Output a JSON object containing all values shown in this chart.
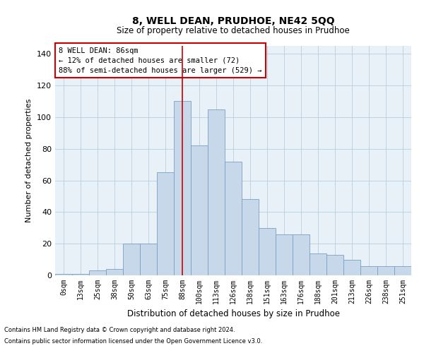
{
  "title1": "8, WELL DEAN, PRUDHOE, NE42 5QQ",
  "title2": "Size of property relative to detached houses in Prudhoe",
  "xlabel": "Distribution of detached houses by size in Prudhoe",
  "ylabel": "Number of detached properties",
  "footnote1": "Contains HM Land Registry data © Crown copyright and database right 2024.",
  "footnote2": "Contains public sector information licensed under the Open Government Licence v3.0.",
  "annotation_line1": "8 WELL DEAN: 86sqm",
  "annotation_line2": "← 12% of detached houses are smaller (72)",
  "annotation_line3": "88% of semi-detached houses are larger (529) →",
  "bar_color": "#c8d8eb",
  "bar_edge_color": "#7aa0c0",
  "highlight_color": "#cc0000",
  "highlight_index": 7,
  "categories": [
    "0sqm",
    "13sqm",
    "25sqm",
    "38sqm",
    "50sqm",
    "63sqm",
    "75sqm",
    "88sqm",
    "100sqm",
    "113sqm",
    "126sqm",
    "138sqm",
    "151sqm",
    "163sqm",
    "176sqm",
    "188sqm",
    "201sqm",
    "213sqm",
    "226sqm",
    "238sqm",
    "251sqm"
  ],
  "values": [
    1,
    1,
    3,
    4,
    20,
    20,
    65,
    110,
    82,
    105,
    72,
    48,
    30,
    26,
    26,
    14,
    13,
    10,
    6,
    6,
    6
  ],
  "ylim": [
    0,
    145
  ],
  "yticks": [
    0,
    20,
    40,
    60,
    80,
    100,
    120,
    140
  ],
  "grid_color": "#b8cfe0",
  "bg_color": "#e8f0f8"
}
